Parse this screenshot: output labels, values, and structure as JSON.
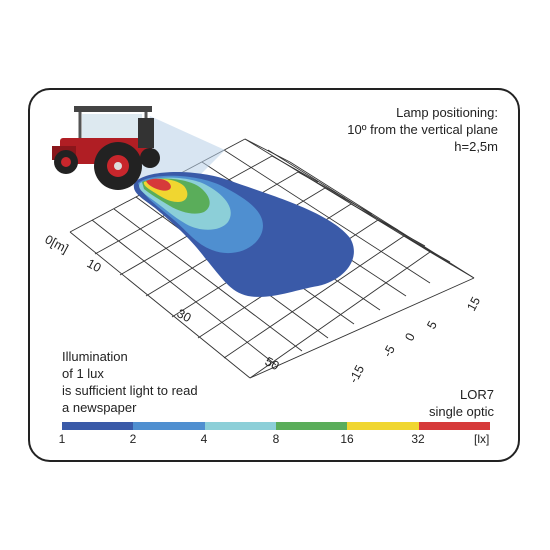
{
  "lamp_positioning": {
    "line1": "Lamp positioning:",
    "line2": "10º from the vertical plane",
    "line3": "h=2,5m"
  },
  "illumination_note": {
    "line1": "Illumination",
    "line2": "of 1 lux",
    "line3": "is sufficient light to read",
    "line4": "a newspaper"
  },
  "product": {
    "name": "LOR7",
    "optic": "single optic"
  },
  "distance_labels": [
    "0[m]",
    "10",
    "30",
    "50"
  ],
  "lateral_labels": [
    "15",
    "5",
    "0",
    "-5",
    "-15"
  ],
  "scale": {
    "colors": [
      "#3a5aa8",
      "#4f8fd0",
      "#8ccfd8",
      "#5aad5a",
      "#f0d630",
      "#d63a3a"
    ],
    "ticks": [
      "1",
      "2",
      "4",
      "8",
      "16",
      "32"
    ],
    "unit": "[lx]"
  },
  "icons": [
    "tractor-icon",
    "light-beam-icon"
  ]
}
